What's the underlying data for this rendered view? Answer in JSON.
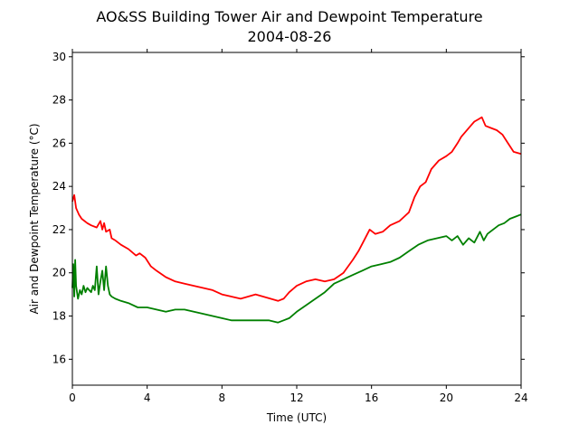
{
  "chart_data": {
    "type": "line",
    "title": "AO&SS Building Tower Air and Dewpoint Temperature",
    "subtitle": "2004-08-26",
    "xlabel": "Time (UTC)",
    "ylabel": "Air and Dewpoint Temperature (°C)",
    "xlim": [
      0,
      24
    ],
    "ylim": [
      14.8,
      30.2
    ],
    "xticks": [
      0,
      4,
      8,
      12,
      16,
      20,
      24
    ],
    "yticks": [
      16,
      18,
      20,
      22,
      24,
      26,
      28,
      30
    ],
    "grid": false,
    "series": [
      {
        "color": "#ff0000",
        "x": [
          0,
          0.1,
          0.2,
          0.35,
          0.5,
          0.8,
          1.0,
          1.3,
          1.5,
          1.6,
          1.7,
          1.8,
          2.0,
          2.1,
          2.3,
          2.6,
          3.0,
          3.4,
          3.6,
          3.9,
          4.2,
          4.5,
          5.0,
          5.5,
          6.0,
          6.5,
          7.0,
          7.5,
          8.0,
          8.5,
          9.0,
          9.4,
          9.8,
          10.2,
          10.6,
          11.0,
          11.3,
          11.6,
          12.0,
          12.5,
          13.0,
          13.5,
          14.0,
          14.5,
          15.0,
          15.3,
          15.6,
          15.9,
          16.2,
          16.6,
          17.0,
          17.5,
          18.0,
          18.3,
          18.6,
          18.9,
          19.2,
          19.6,
          20.0,
          20.3,
          20.6,
          20.8,
          21.0,
          21.3,
          21.5,
          21.7,
          21.9,
          22.1,
          22.4,
          22.7,
          23.0,
          23.3,
          23.6,
          24.0
        ],
        "values": [
          23.3,
          23.6,
          23.0,
          22.7,
          22.5,
          22.3,
          22.2,
          22.1,
          22.4,
          22.0,
          22.3,
          21.9,
          22.0,
          21.6,
          21.5,
          21.3,
          21.1,
          20.8,
          20.9,
          20.7,
          20.3,
          20.1,
          19.8,
          19.6,
          19.5,
          19.4,
          19.3,
          19.2,
          19.0,
          18.9,
          18.8,
          18.9,
          19.0,
          18.9,
          18.8,
          18.7,
          18.8,
          19.1,
          19.4,
          19.6,
          19.7,
          19.6,
          19.7,
          20.0,
          20.6,
          21.0,
          21.5,
          22.0,
          21.8,
          21.9,
          22.2,
          22.4,
          22.8,
          23.5,
          24.0,
          24.2,
          24.8,
          25.2,
          25.4,
          25.6,
          26.0,
          26.3,
          26.5,
          26.8,
          27.0,
          27.1,
          27.2,
          26.8,
          26.7,
          26.6,
          26.4,
          26.0,
          25.6,
          25.5
        ]
      },
      {
        "color": "#008000",
        "x": [
          0,
          0.05,
          0.1,
          0.15,
          0.2,
          0.3,
          0.4,
          0.5,
          0.6,
          0.7,
          0.8,
          0.9,
          1.0,
          1.1,
          1.2,
          1.3,
          1.4,
          1.5,
          1.6,
          1.7,
          1.8,
          1.9,
          2.0,
          2.1,
          2.3,
          2.6,
          3.0,
          3.5,
          4.0,
          4.5,
          5.0,
          5.5,
          6.0,
          6.5,
          7.0,
          7.5,
          8.0,
          8.5,
          9.0,
          9.5,
          10.0,
          10.5,
          11.0,
          11.3,
          11.6,
          12.0,
          12.5,
          13.0,
          13.5,
          14.0,
          14.5,
          15.0,
          15.5,
          16.0,
          16.5,
          17.0,
          17.5,
          18.0,
          18.5,
          19.0,
          19.5,
          20.0,
          20.3,
          20.6,
          20.9,
          21.2,
          21.5,
          21.8,
          22.0,
          22.2,
          22.5,
          22.8,
          23.1,
          23.4,
          23.7,
          24.0
        ],
        "values": [
          19.3,
          20.4,
          18.9,
          20.6,
          19.4,
          18.8,
          19.2,
          19.0,
          19.4,
          19.1,
          19.3,
          19.2,
          19.1,
          19.4,
          19.2,
          20.3,
          19.0,
          19.6,
          20.1,
          19.2,
          20.3,
          19.4,
          19.0,
          18.9,
          18.8,
          18.7,
          18.6,
          18.4,
          18.4,
          18.3,
          18.2,
          18.3,
          18.3,
          18.2,
          18.1,
          18.0,
          17.9,
          17.8,
          17.8,
          17.8,
          17.8,
          17.8,
          17.7,
          17.8,
          17.9,
          18.2,
          18.5,
          18.8,
          19.1,
          19.5,
          19.7,
          19.9,
          20.1,
          20.3,
          20.4,
          20.5,
          20.7,
          21.0,
          21.3,
          21.5,
          21.6,
          21.7,
          21.5,
          21.7,
          21.3,
          21.6,
          21.4,
          21.9,
          21.5,
          21.8,
          22.0,
          22.2,
          22.3,
          22.5,
          22.6,
          22.7
        ]
      }
    ]
  }
}
